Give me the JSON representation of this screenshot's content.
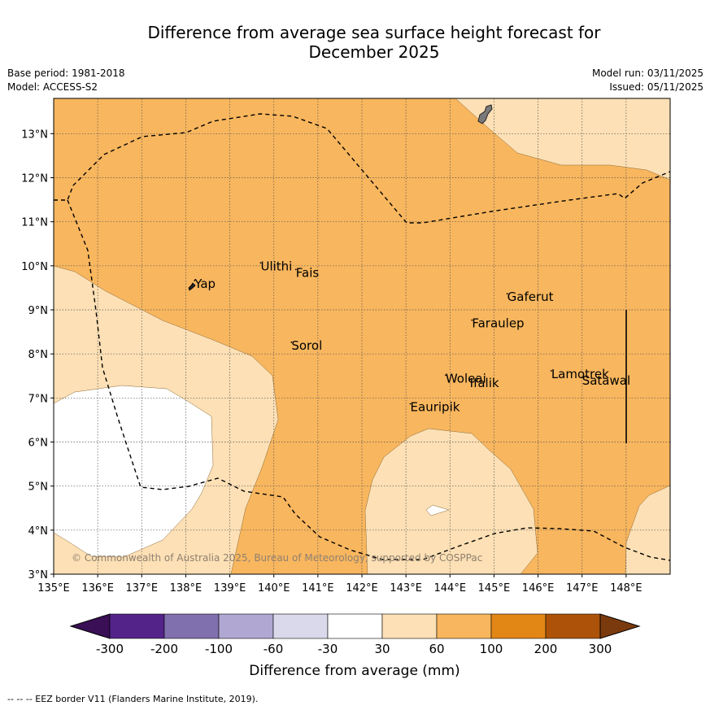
{
  "title_line1": "Difference from average sea surface height forecast for",
  "title_line2": "December 2025",
  "meta": {
    "base_period": "Base period: 1981-2018",
    "model": "Model: ACCESS-S2",
    "model_run": "Model run: 03/11/2025",
    "issued": "Issued: 05/11/2025"
  },
  "chart_data": {
    "type": "map",
    "x_ticks": [
      "135°E",
      "136°E",
      "137°E",
      "138°E",
      "139°E",
      "140°E",
      "141°E",
      "142°E",
      "143°E",
      "144°E",
      "145°E",
      "146°E",
      "147°E",
      "148°E"
    ],
    "y_ticks": [
      "3°N",
      "4°N",
      "5°N",
      "6°N",
      "7°N",
      "8°N",
      "9°N",
      "10°N",
      "11°N",
      "12°N",
      "13°N"
    ],
    "lon_range": [
      135,
      149
    ],
    "lat_range": [
      3,
      13.8
    ],
    "places": [
      {
        "name": "Yap",
        "lon": 138.2,
        "lat": 9.5
      },
      {
        "name": "Ulithi",
        "lon": 139.7,
        "lat": 9.9
      },
      {
        "name": "Fais",
        "lon": 140.5,
        "lat": 9.75
      },
      {
        "name": "Sorol",
        "lon": 140.4,
        "lat": 8.1
      },
      {
        "name": "Gaferut",
        "lon": 145.3,
        "lat": 9.2
      },
      {
        "name": "Faraulep",
        "lon": 144.5,
        "lat": 8.6
      },
      {
        "name": "Woleai",
        "lon": 143.9,
        "lat": 7.35
      },
      {
        "name": "Ifalik",
        "lon": 144.45,
        "lat": 7.25
      },
      {
        "name": "Lamotrek",
        "lon": 146.3,
        "lat": 7.45
      },
      {
        "name": "Satawal",
        "lon": 147.0,
        "lat": 7.3
      },
      {
        "name": "Eauripik",
        "lon": 143.1,
        "lat": 6.7
      }
    ],
    "colorbar": {
      "labels": [
        "-300",
        "-200",
        "-100",
        "-60",
        "-30",
        "30",
        "60",
        "100",
        "200",
        "300"
      ],
      "colors": [
        "#3a0f55",
        "#53238a",
        "#8070ae",
        "#b0a8d2",
        "#dad9ec",
        "#ffffff",
        "#fde0b5",
        "#f8b65e",
        "#e28616",
        "#ad5309",
        "#7b3a0d"
      ],
      "label": "Difference from average (mm)"
    },
    "copyright": "© Commonwealth of Australia 2025, Bureau of Meteorology, supported by COSPPac"
  },
  "footer_legend": "--  --  -- EEZ border V11 (Flanders Marine Institute, 2019)."
}
